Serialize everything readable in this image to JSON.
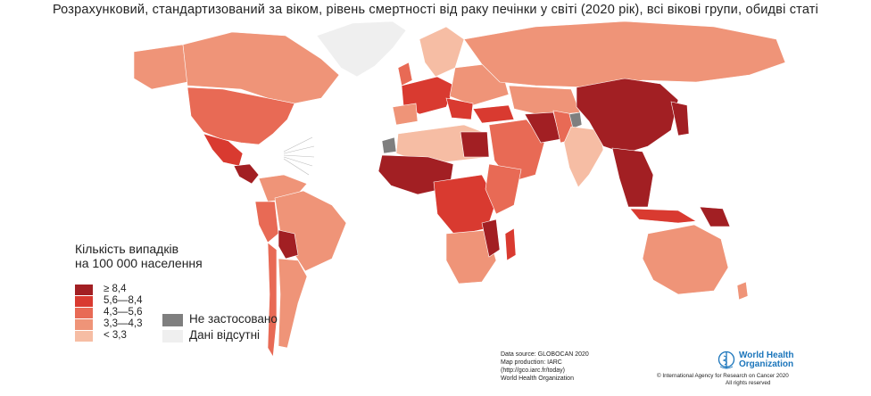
{
  "title": "Розрахунковий, стандартизований за віком, рівень смертності від раку печінки у світі (2020 рік), всі вікові групи, обидві статі",
  "colors": {
    "c5": "#a21f23",
    "c4": "#d93a30",
    "c3": "#e86a55",
    "c2": "#ef9478",
    "c1": "#f6bda4",
    "na": "#7f7f7f",
    "nodata": "#efefef"
  },
  "legend": {
    "title_line1": "Кількість випадків",
    "title_line2": "на 100 000 населення",
    "items": [
      {
        "label": "≥ 8,4",
        "color": "#a21f23"
      },
      {
        "label": "5,6—8,4",
        "color": "#d93a30"
      },
      {
        "label": "4,3—5,6",
        "color": "#e86a55"
      },
      {
        "label": "3,3—4,3",
        "color": "#ef9478"
      },
      {
        "label": "< 3,3",
        "color": "#f6bda4"
      }
    ],
    "not_applicable": "Не застосовано",
    "no_data": "Дані відсутні"
  },
  "credits": {
    "line1": "Data source: GLOBOCAN 2020",
    "line2": "Map production: IARC",
    "line3": "(http://gco.iarc.fr/today)",
    "line4": "World Health Organization"
  },
  "who": {
    "name_line1": "World Health",
    "name_line2": "Organization",
    "copyright_line1": "© International Agency for Research on Cancer 2020",
    "copyright_line2": "All rights reserved"
  }
}
